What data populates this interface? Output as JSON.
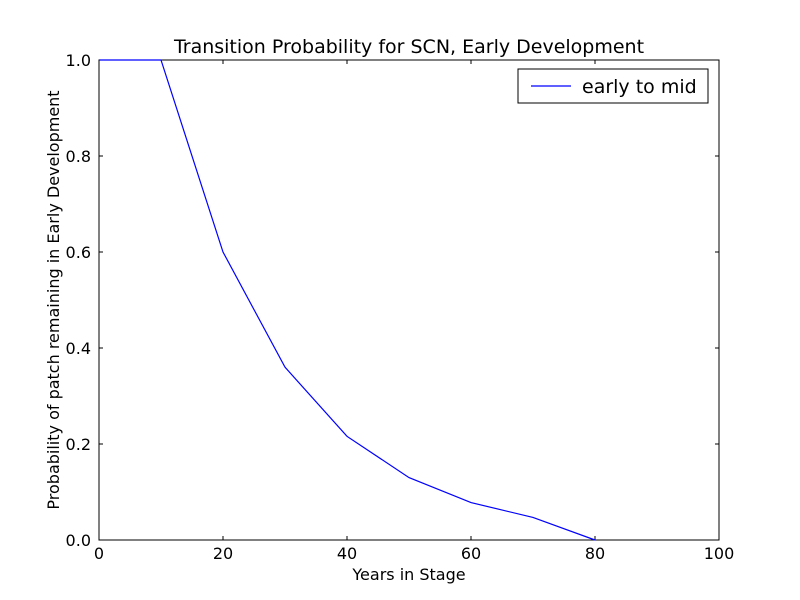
{
  "chart_data": {
    "type": "line",
    "title": "Transition Probability for SCN, Early Development",
    "xlabel": "Years in Stage",
    "ylabel": "Probability of patch remaining in Early Development",
    "xlim": [
      0,
      100
    ],
    "ylim": [
      0.0,
      1.0
    ],
    "x_ticks": [
      0,
      20,
      40,
      60,
      80,
      100
    ],
    "x_tick_labels": [
      "0",
      "20",
      "40",
      "60",
      "80",
      "100"
    ],
    "y_ticks": [
      0.0,
      0.2,
      0.4,
      0.6,
      0.8,
      1.0
    ],
    "y_tick_labels": [
      "0.0",
      "0.2",
      "0.4",
      "0.6",
      "0.8",
      "1.0"
    ],
    "grid": false,
    "legend_position": "top-right",
    "series": [
      {
        "name": "early to mid",
        "color": "#0000ff",
        "x": [
          0,
          10,
          20,
          30,
          40,
          50,
          60,
          70,
          80
        ],
        "y": [
          1.0,
          1.0,
          0.6,
          0.36,
          0.216,
          0.13,
          0.078,
          0.047,
          0.0
        ]
      }
    ]
  }
}
